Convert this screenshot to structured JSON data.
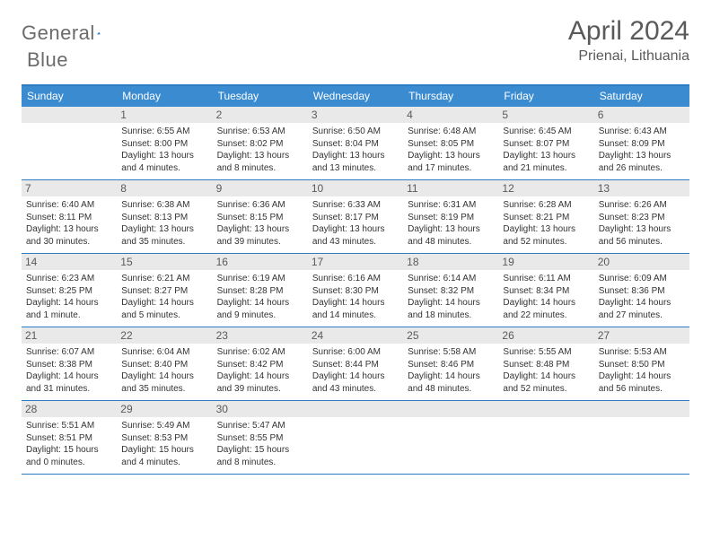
{
  "brand": {
    "word1": "General",
    "word2": "Blue"
  },
  "title": "April 2024",
  "location": "Prienai, Lithuania",
  "colors": {
    "header_bg": "#3b8bd0",
    "header_text": "#ffffff",
    "border": "#2d7cc1",
    "daynum_bg": "#e9e9e9",
    "text": "#333333",
    "muted": "#5a5a5a"
  },
  "dayNames": [
    "Sunday",
    "Monday",
    "Tuesday",
    "Wednesday",
    "Thursday",
    "Friday",
    "Saturday"
  ],
  "weeks": [
    [
      {
        "n": "",
        "sr": "",
        "ss": "",
        "dl1": "",
        "dl2": ""
      },
      {
        "n": "1",
        "sr": "Sunrise: 6:55 AM",
        "ss": "Sunset: 8:00 PM",
        "dl1": "Daylight: 13 hours",
        "dl2": "and 4 minutes."
      },
      {
        "n": "2",
        "sr": "Sunrise: 6:53 AM",
        "ss": "Sunset: 8:02 PM",
        "dl1": "Daylight: 13 hours",
        "dl2": "and 8 minutes."
      },
      {
        "n": "3",
        "sr": "Sunrise: 6:50 AM",
        "ss": "Sunset: 8:04 PM",
        "dl1": "Daylight: 13 hours",
        "dl2": "and 13 minutes."
      },
      {
        "n": "4",
        "sr": "Sunrise: 6:48 AM",
        "ss": "Sunset: 8:05 PM",
        "dl1": "Daylight: 13 hours",
        "dl2": "and 17 minutes."
      },
      {
        "n": "5",
        "sr": "Sunrise: 6:45 AM",
        "ss": "Sunset: 8:07 PM",
        "dl1": "Daylight: 13 hours",
        "dl2": "and 21 minutes."
      },
      {
        "n": "6",
        "sr": "Sunrise: 6:43 AM",
        "ss": "Sunset: 8:09 PM",
        "dl1": "Daylight: 13 hours",
        "dl2": "and 26 minutes."
      }
    ],
    [
      {
        "n": "7",
        "sr": "Sunrise: 6:40 AM",
        "ss": "Sunset: 8:11 PM",
        "dl1": "Daylight: 13 hours",
        "dl2": "and 30 minutes."
      },
      {
        "n": "8",
        "sr": "Sunrise: 6:38 AM",
        "ss": "Sunset: 8:13 PM",
        "dl1": "Daylight: 13 hours",
        "dl2": "and 35 minutes."
      },
      {
        "n": "9",
        "sr": "Sunrise: 6:36 AM",
        "ss": "Sunset: 8:15 PM",
        "dl1": "Daylight: 13 hours",
        "dl2": "and 39 minutes."
      },
      {
        "n": "10",
        "sr": "Sunrise: 6:33 AM",
        "ss": "Sunset: 8:17 PM",
        "dl1": "Daylight: 13 hours",
        "dl2": "and 43 minutes."
      },
      {
        "n": "11",
        "sr": "Sunrise: 6:31 AM",
        "ss": "Sunset: 8:19 PM",
        "dl1": "Daylight: 13 hours",
        "dl2": "and 48 minutes."
      },
      {
        "n": "12",
        "sr": "Sunrise: 6:28 AM",
        "ss": "Sunset: 8:21 PM",
        "dl1": "Daylight: 13 hours",
        "dl2": "and 52 minutes."
      },
      {
        "n": "13",
        "sr": "Sunrise: 6:26 AM",
        "ss": "Sunset: 8:23 PM",
        "dl1": "Daylight: 13 hours",
        "dl2": "and 56 minutes."
      }
    ],
    [
      {
        "n": "14",
        "sr": "Sunrise: 6:23 AM",
        "ss": "Sunset: 8:25 PM",
        "dl1": "Daylight: 14 hours",
        "dl2": "and 1 minute."
      },
      {
        "n": "15",
        "sr": "Sunrise: 6:21 AM",
        "ss": "Sunset: 8:27 PM",
        "dl1": "Daylight: 14 hours",
        "dl2": "and 5 minutes."
      },
      {
        "n": "16",
        "sr": "Sunrise: 6:19 AM",
        "ss": "Sunset: 8:28 PM",
        "dl1": "Daylight: 14 hours",
        "dl2": "and 9 minutes."
      },
      {
        "n": "17",
        "sr": "Sunrise: 6:16 AM",
        "ss": "Sunset: 8:30 PM",
        "dl1": "Daylight: 14 hours",
        "dl2": "and 14 minutes."
      },
      {
        "n": "18",
        "sr": "Sunrise: 6:14 AM",
        "ss": "Sunset: 8:32 PM",
        "dl1": "Daylight: 14 hours",
        "dl2": "and 18 minutes."
      },
      {
        "n": "19",
        "sr": "Sunrise: 6:11 AM",
        "ss": "Sunset: 8:34 PM",
        "dl1": "Daylight: 14 hours",
        "dl2": "and 22 minutes."
      },
      {
        "n": "20",
        "sr": "Sunrise: 6:09 AM",
        "ss": "Sunset: 8:36 PM",
        "dl1": "Daylight: 14 hours",
        "dl2": "and 27 minutes."
      }
    ],
    [
      {
        "n": "21",
        "sr": "Sunrise: 6:07 AM",
        "ss": "Sunset: 8:38 PM",
        "dl1": "Daylight: 14 hours",
        "dl2": "and 31 minutes."
      },
      {
        "n": "22",
        "sr": "Sunrise: 6:04 AM",
        "ss": "Sunset: 8:40 PM",
        "dl1": "Daylight: 14 hours",
        "dl2": "and 35 minutes."
      },
      {
        "n": "23",
        "sr": "Sunrise: 6:02 AM",
        "ss": "Sunset: 8:42 PM",
        "dl1": "Daylight: 14 hours",
        "dl2": "and 39 minutes."
      },
      {
        "n": "24",
        "sr": "Sunrise: 6:00 AM",
        "ss": "Sunset: 8:44 PM",
        "dl1": "Daylight: 14 hours",
        "dl2": "and 43 minutes."
      },
      {
        "n": "25",
        "sr": "Sunrise: 5:58 AM",
        "ss": "Sunset: 8:46 PM",
        "dl1": "Daylight: 14 hours",
        "dl2": "and 48 minutes."
      },
      {
        "n": "26",
        "sr": "Sunrise: 5:55 AM",
        "ss": "Sunset: 8:48 PM",
        "dl1": "Daylight: 14 hours",
        "dl2": "and 52 minutes."
      },
      {
        "n": "27",
        "sr": "Sunrise: 5:53 AM",
        "ss": "Sunset: 8:50 PM",
        "dl1": "Daylight: 14 hours",
        "dl2": "and 56 minutes."
      }
    ],
    [
      {
        "n": "28",
        "sr": "Sunrise: 5:51 AM",
        "ss": "Sunset: 8:51 PM",
        "dl1": "Daylight: 15 hours",
        "dl2": "and 0 minutes."
      },
      {
        "n": "29",
        "sr": "Sunrise: 5:49 AM",
        "ss": "Sunset: 8:53 PM",
        "dl1": "Daylight: 15 hours",
        "dl2": "and 4 minutes."
      },
      {
        "n": "30",
        "sr": "Sunrise: 5:47 AM",
        "ss": "Sunset: 8:55 PM",
        "dl1": "Daylight: 15 hours",
        "dl2": "and 8 minutes."
      },
      {
        "n": "",
        "sr": "",
        "ss": "",
        "dl1": "",
        "dl2": ""
      },
      {
        "n": "",
        "sr": "",
        "ss": "",
        "dl1": "",
        "dl2": ""
      },
      {
        "n": "",
        "sr": "",
        "ss": "",
        "dl1": "",
        "dl2": ""
      },
      {
        "n": "",
        "sr": "",
        "ss": "",
        "dl1": "",
        "dl2": ""
      }
    ]
  ]
}
